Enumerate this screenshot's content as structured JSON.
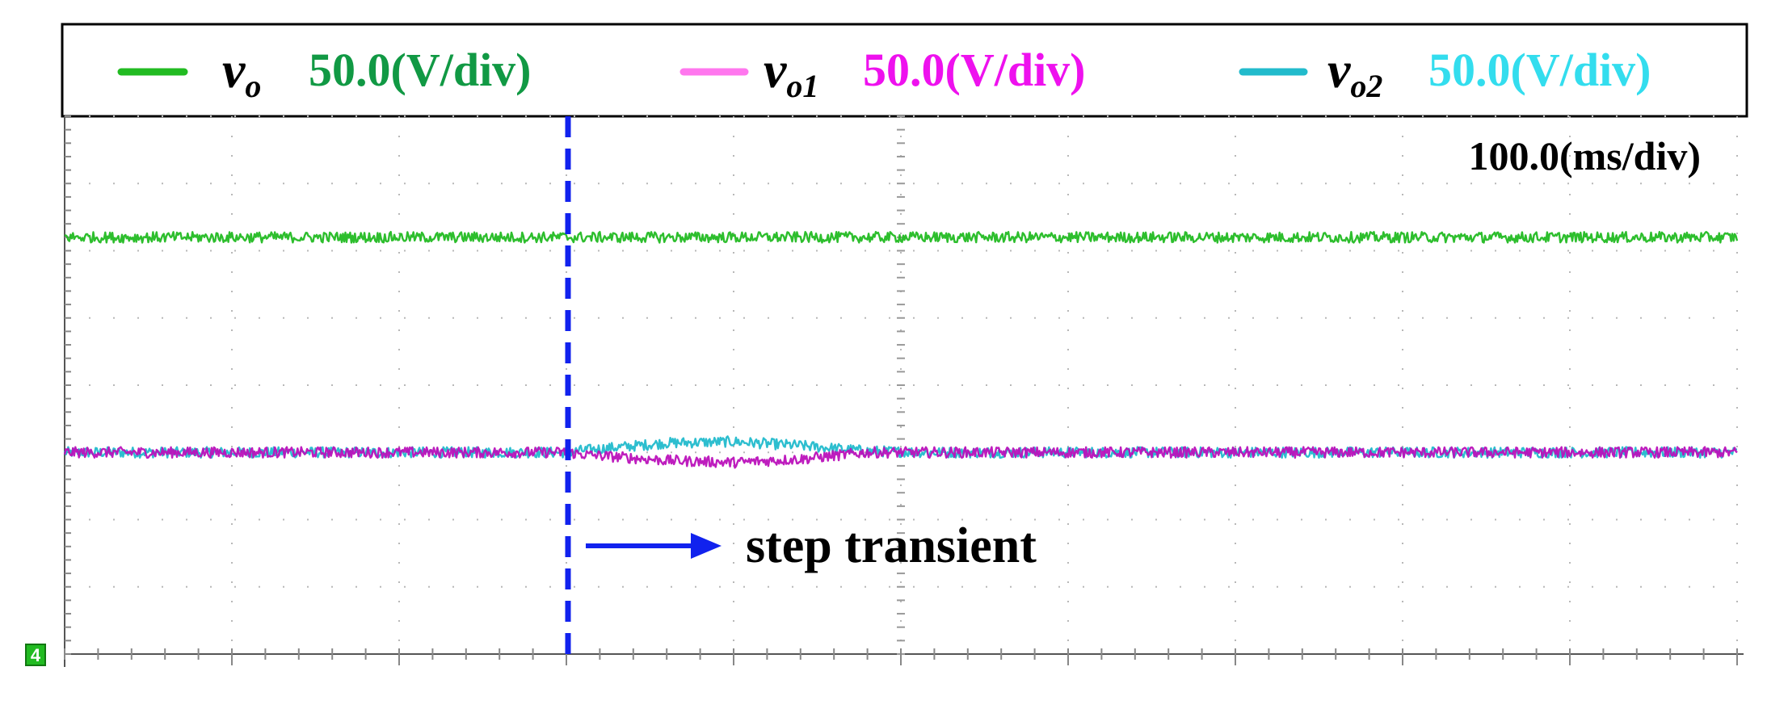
{
  "chart_data": {
    "type": "line",
    "title": "",
    "time_scale": "100.0(ms/div)",
    "x_divisions": 10,
    "y_divisions": 8,
    "xlim": [
      0,
      1000
    ],
    "x_unit": "ms",
    "y_unit": "div",
    "ylim_div": [
      0,
      8
    ],
    "grid": true,
    "ground_marker": "4",
    "series": [
      {
        "name": "v_o",
        "label_main": "v",
        "label_sub": "o",
        "scale": "50.0(V/div)",
        "color": "#22bb22",
        "label_color": "#119944",
        "level_div": 6.2,
        "noise_div": 0.08,
        "x": [
          0,
          300,
          700,
          1000
        ],
        "y": [
          6.2,
          6.2,
          6.2,
          6.2
        ]
      },
      {
        "name": "v_o1",
        "label_main": "v",
        "label_sub": "o1",
        "scale": "50.0(V/div)",
        "color": "#bb11bb",
        "label_color": "#ee11ee",
        "legend_line_color": "#ff77ee",
        "level_div": 3.0,
        "noise_div": 0.08,
        "x": [
          0,
          300,
          310,
          360,
          400,
          440,
          480,
          520,
          1000
        ],
        "y": [
          3.0,
          3.0,
          2.97,
          2.88,
          2.85,
          2.9,
          3.0,
          3.0,
          3.0
        ]
      },
      {
        "name": "v_o2",
        "label_main": "v",
        "label_sub": "o2",
        "scale": "50.0(V/div)",
        "color": "#22bbcc",
        "label_color": "#33ddee",
        "level_div": 3.0,
        "noise_div": 0.08,
        "x": [
          0,
          300,
          310,
          360,
          400,
          440,
          480,
          520,
          1000
        ],
        "y": [
          3.0,
          3.0,
          3.03,
          3.14,
          3.16,
          3.1,
          3.02,
          3.0,
          3.0
        ]
      }
    ],
    "annotations": [
      {
        "text": "step transient",
        "x": 300,
        "marker": "dashed-vertical-line",
        "color": "#1122ee"
      }
    ]
  }
}
